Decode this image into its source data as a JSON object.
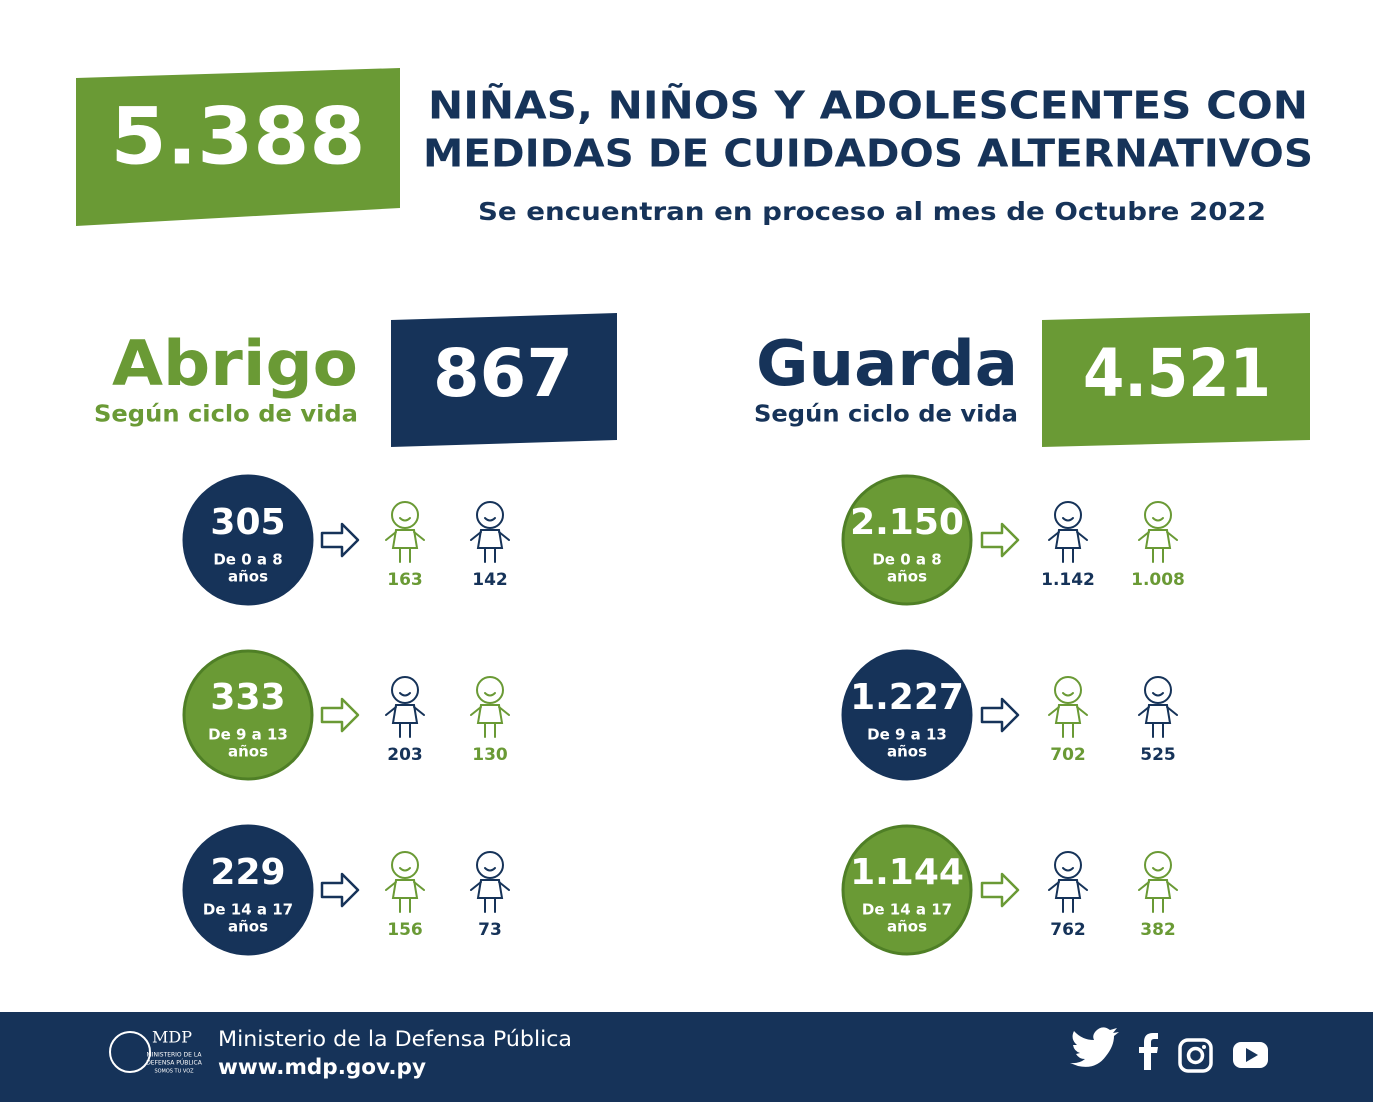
{
  "header": {
    "total": "5.388",
    "title_lines": [
      "NIÑAS, NIÑOS Y ADOLESCENTES CON",
      "MEDIDAS DE CUIDADOS ALTERNATIVOS"
    ],
    "subtitle": "Se encuentran en proceso al mes de Octubre 2022"
  },
  "sections": [
    {
      "name": "Abrigo",
      "subtitle": "Según ciclo de vida",
      "total": "867",
      "name_color": "#6a9a35",
      "box_color": "#163359",
      "groups": [
        {
          "total": "305",
          "label_lines": [
            "De 0 a 8",
            "años"
          ],
          "color": "#163359",
          "counts": [
            {
              "value": "163",
              "color": "#6a9a35"
            },
            {
              "value": "142",
              "color": "#163359"
            }
          ]
        },
        {
          "total": "333",
          "label_lines": [
            "De 9 a 13",
            "años"
          ],
          "color": "#6a9a35",
          "counts": [
            {
              "value": "203",
              "color": "#163359"
            },
            {
              "value": "130",
              "color": "#6a9a35"
            }
          ]
        },
        {
          "total": "229",
          "label_lines": [
            "De 14 a 17",
            "años"
          ],
          "color": "#163359",
          "counts": [
            {
              "value": "156",
              "color": "#6a9a35"
            },
            {
              "value": "73",
              "color": "#163359"
            }
          ]
        }
      ]
    },
    {
      "name": "Guarda",
      "subtitle": "Según ciclo de vida",
      "total": "4.521",
      "name_color": "#163359",
      "box_color": "#6a9a35",
      "groups": [
        {
          "total": "2.150",
          "label_lines": [
            "De 0 a 8",
            "años"
          ],
          "color": "#6a9a35",
          "counts": [
            {
              "value": "1.142",
              "color": "#163359"
            },
            {
              "value": "1.008",
              "color": "#6a9a35"
            }
          ]
        },
        {
          "total": "1.227",
          "label_lines": [
            "De 9 a 13",
            "años"
          ],
          "color": "#163359",
          "counts": [
            {
              "value": "702",
              "color": "#6a9a35"
            },
            {
              "value": "525",
              "color": "#163359"
            }
          ]
        },
        {
          "total": "1.144",
          "label_lines": [
            "De 14 a 17",
            "años"
          ],
          "color": "#6a9a35",
          "counts": [
            {
              "value": "762",
              "color": "#163359"
            },
            {
              "value": "382",
              "color": "#6a9a35"
            }
          ]
        }
      ]
    }
  ],
  "footer": {
    "logo_lines": [
      "MDP",
      "MINISTERIO DE LA",
      "DEFENSA PÚBLICA",
      "SOMOS TU VOZ"
    ],
    "org": "Ministerio de la Defensa Pública",
    "url": "www.mdp.gov.py"
  }
}
